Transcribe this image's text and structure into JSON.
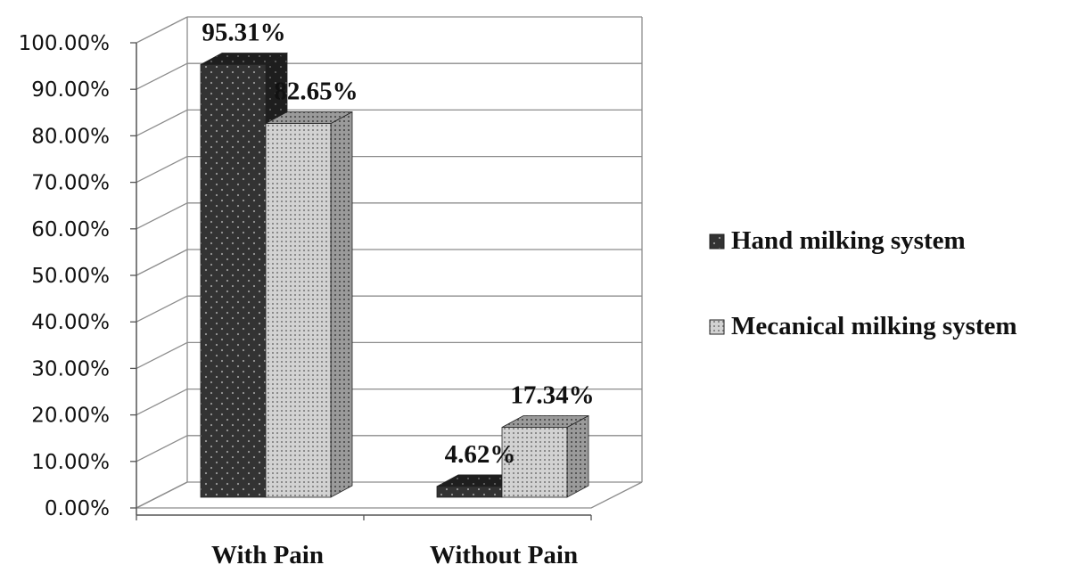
{
  "chart_data": {
    "type": "bar",
    "style": "3d-clustered-column",
    "categories": [
      "With Pain",
      "Without  Pain"
    ],
    "series": [
      {
        "name": "Hand milking system",
        "values": [
          95.31,
          4.62
        ],
        "data_labels": [
          "95.31%",
          "4.62%"
        ],
        "color": "#3a3a3a",
        "pattern": "dots"
      },
      {
        "name": "Mecanical milking system",
        "values": [
          82.65,
          17.34
        ],
        "data_labels": [
          "82.65%",
          "17.34%"
        ],
        "color": "#c4c4c4",
        "pattern": "grid"
      }
    ],
    "ylim": [
      0,
      100
    ],
    "yticks": [
      0,
      10,
      20,
      30,
      40,
      50,
      60,
      70,
      80,
      90,
      100
    ],
    "ytick_labels": [
      "0.00%",
      "10.00%",
      "20.00%",
      "30.00%",
      "40.00%",
      "50.00%",
      "60.00%",
      "70.00%",
      "80.00%",
      "90.00%",
      "100.00%"
    ],
    "grid": true,
    "legend_position": "right",
    "title": "",
    "xlabel": "",
    "ylabel": ""
  }
}
